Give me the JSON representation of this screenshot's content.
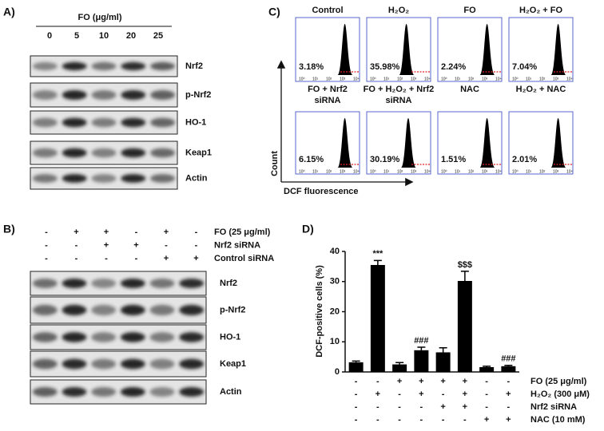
{
  "panel_a": {
    "label": "A)",
    "treatment": "FO (μg/ml)",
    "doses": [
      "0",
      "5",
      "10",
      "20",
      "25"
    ],
    "blots": [
      "Nrf2",
      "p-Nrf2",
      "HO-1",
      "Keap1",
      "Actin"
    ]
  },
  "panel_b": {
    "label": "B)",
    "conditions": [
      {
        "name": "FO (25 μg/ml)",
        "signs": [
          "-",
          "+",
          "+",
          "-",
          "+",
          "-"
        ]
      },
      {
        "name": "Nrf2 siRNA",
        "signs": [
          "-",
          "-",
          "+",
          "+",
          "-",
          "-"
        ]
      },
      {
        "name": "Control siRNA",
        "signs": [
          "-",
          "-",
          "-",
          "-",
          "+",
          "+"
        ]
      }
    ],
    "blots": [
      "Nrf2",
      "p-Nrf2",
      "HO-1",
      "Keap1",
      "Actin"
    ]
  },
  "panel_c": {
    "label": "C)",
    "y_axis": "Count",
    "x_axis": "DCF fluorescence",
    "x_tick_labels": [
      "10⁰",
      "10¹",
      "10²",
      "10³",
      "10⁴"
    ],
    "plots": [
      {
        "title": [
          "Control"
        ],
        "percent": "3.18%"
      },
      {
        "title": [
          "H₂O₂"
        ],
        "percent": "35.98%"
      },
      {
        "title": [
          "FO"
        ],
        "percent": "2.24%"
      },
      {
        "title": [
          "H₂O₂ + FO"
        ],
        "percent": "7.04%"
      },
      {
        "title": [
          "FO + Nrf2",
          "siRNA"
        ],
        "percent": "6.15%"
      },
      {
        "title": [
          "FO + H₂O₂ + Nrf2",
          "siRNA"
        ],
        "percent": "30.19%"
      },
      {
        "title": [
          "NAC"
        ],
        "percent": "1.51%"
      },
      {
        "title": [
          "H₂O₂ + NAC"
        ],
        "percent": "2.01%"
      }
    ]
  },
  "chart_data": {
    "type": "bar",
    "panel_label": "D)",
    "ylabel": "DCF-positive cells (%)",
    "values": [
      3.2,
      35.5,
      2.5,
      7.2,
      6.5,
      30.2,
      1.6,
      1.9
    ],
    "errors": [
      0.4,
      1.5,
      0.6,
      1.0,
      1.5,
      3.2,
      0.3,
      0.3
    ],
    "color": "#000000",
    "ylim": [
      0,
      40
    ],
    "yticks": [
      0,
      10,
      20,
      30,
      40
    ],
    "annotations": [
      {
        "index": 1,
        "text": "***"
      },
      {
        "index": 3,
        "text": "###"
      },
      {
        "index": 5,
        "text": "$$$"
      },
      {
        "index": 7,
        "text": "###"
      }
    ],
    "conditions": [
      {
        "name": "FO (25 μg/ml)",
        "signs": [
          "-",
          "-",
          "+",
          "+",
          "+",
          "+",
          "-",
          "-"
        ]
      },
      {
        "name": "H₂O₂ (300 μM)",
        "signs": [
          "-",
          "+",
          "-",
          "+",
          "-",
          "+",
          "-",
          "+"
        ]
      },
      {
        "name": "Nrf2 siRNA",
        "signs": [
          "-",
          "-",
          "-",
          "-",
          "+",
          "+",
          "-",
          "-"
        ]
      },
      {
        "name": "NAC (10 mM)",
        "signs": [
          "-",
          "-",
          "-",
          "-",
          "-",
          "-",
          "+",
          "+"
        ]
      }
    ]
  }
}
